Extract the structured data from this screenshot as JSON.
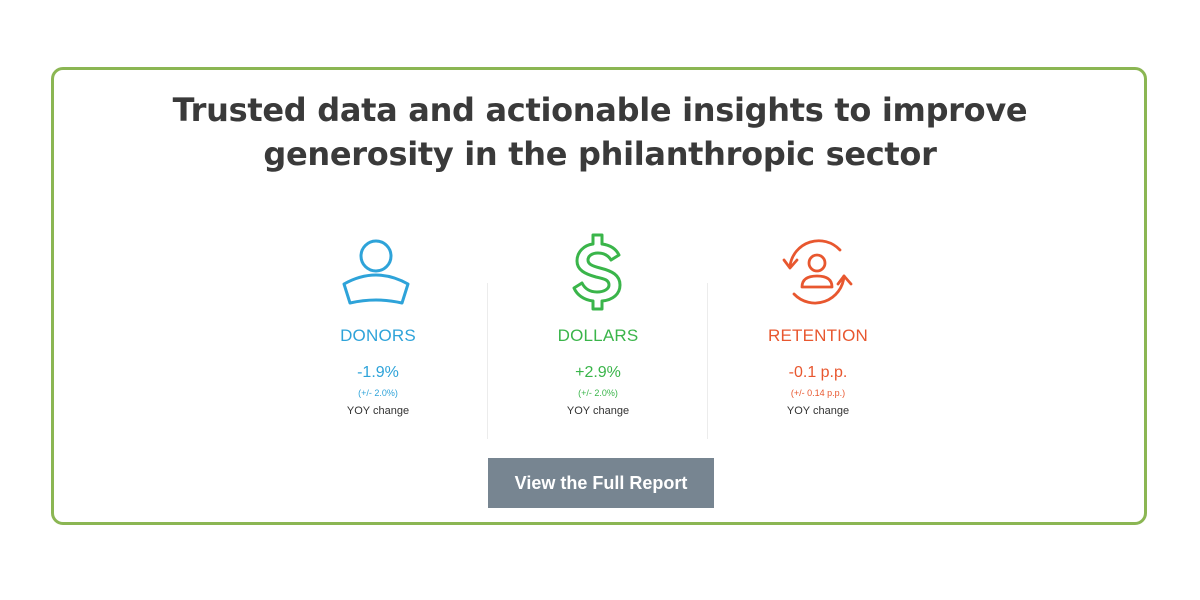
{
  "headline": {
    "line1": "Trusted data and actionable insights to improve",
    "line2": "generosity in the philanthropic sector"
  },
  "stats": [
    {
      "label": "DONORS",
      "value": "-1.9%",
      "margin": "(+/- 2.0%)",
      "yoy": "YOY change",
      "icon": "person-icon",
      "color": "#2ea3d9"
    },
    {
      "label": "DOLLARS",
      "value": "+2.9%",
      "margin": "(+/- 2.0%)",
      "yoy": "YOY change",
      "icon": "dollar-sign-icon",
      "color": "#3ab54a"
    },
    {
      "label": "RETENTION",
      "value": "-0.1 p.p.",
      "margin": "(+/- 0.14 p.p.)",
      "yoy": "YOY change",
      "icon": "retention-cycle-icon",
      "color": "#e8572f"
    }
  ],
  "button": {
    "label": "View the Full Report"
  },
  "colors": {
    "border": "#8bb653",
    "headline": "#3a3a3a",
    "button_bg": "#778591"
  }
}
